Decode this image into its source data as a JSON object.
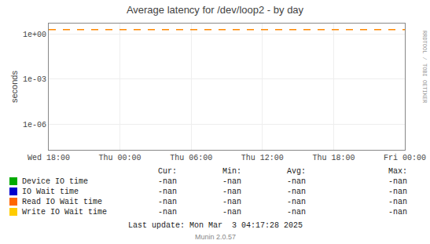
{
  "chart_data": {
    "type": "line",
    "title": "Average latency for /dev/loop2 - by day",
    "ylabel": "seconds",
    "log": "y",
    "grid": true,
    "xlim": [
      0,
      30
    ],
    "xticks": [
      {
        "value": 0,
        "label": "Wed 18:00"
      },
      {
        "value": 6,
        "label": "Thu 00:00"
      },
      {
        "value": 12,
        "label": "Thu 06:00"
      },
      {
        "value": 18,
        "label": "Thu 12:00"
      },
      {
        "value": 24,
        "label": "Thu 18:00"
      },
      {
        "value": 30,
        "label": "Fri 00:00"
      }
    ],
    "ylim": [
      2e-08,
      5
    ],
    "yticks": [
      {
        "value": 1e-06,
        "label": "1e-06"
      },
      {
        "value": 0.001,
        "label": "1e-03"
      },
      {
        "value": 1,
        "label": "1e+00"
      }
    ],
    "hlines": [
      {
        "y": 2.0,
        "color": "#FF8800",
        "line_style": "dashed"
      }
    ],
    "table_headers": [
      "Cur:",
      "Min:",
      "Avg:",
      "Max:"
    ],
    "series": [
      {
        "name": "Device IO time",
        "color": "#00AA00",
        "table_values": [
          "-nan",
          "-nan",
          "-nan",
          "-nan"
        ]
      },
      {
        "name": "IO Wait time",
        "color": "#0000CC",
        "table_values": [
          "-nan",
          "-nan",
          "-nan",
          "-nan"
        ]
      },
      {
        "name": "Read IO Wait time",
        "color": "#FF6600",
        "table_values": [
          "-nan",
          "-nan",
          "-nan",
          "-nan"
        ]
      },
      {
        "name": "Write IO Wait time",
        "color": "#FFCC00",
        "table_values": [
          "-nan",
          "-nan",
          "-nan",
          "-nan"
        ]
      }
    ],
    "annotations": [
      "RRDTOOL / TOBI OETIKER",
      "Last update: Mon Mar  3 04:17:28 2025",
      "Munin 2.0.57"
    ]
  }
}
